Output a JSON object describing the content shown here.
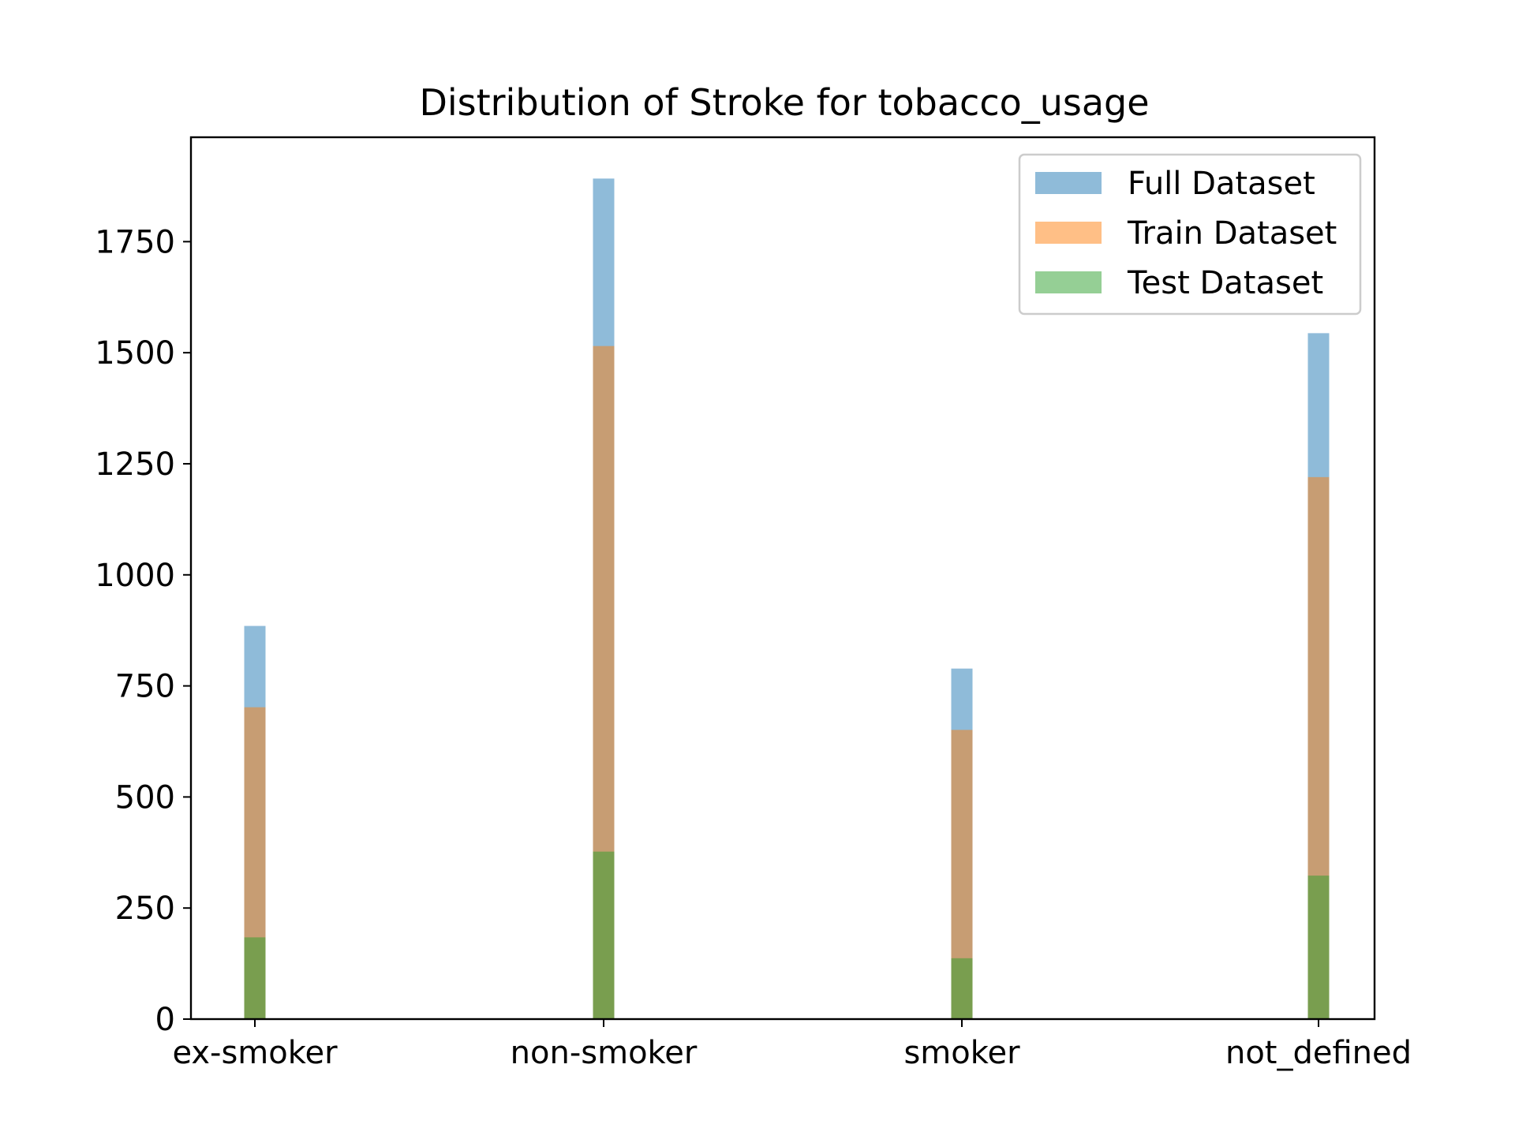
{
  "chart_data": {
    "type": "bar",
    "title": "Distribution of Stroke for tobacco_usage",
    "xlabel": "",
    "ylabel": "",
    "categories": [
      "ex-smoker",
      "non-smoker",
      "smoker",
      "not_defined"
    ],
    "y_ticks": [
      0,
      250,
      500,
      750,
      1000,
      1250,
      1500,
      1750
    ],
    "ylim": [
      0,
      1985
    ],
    "grid": false,
    "legend_position": "top-right",
    "overlay": true,
    "series": [
      {
        "name": "Full Dataset",
        "color": "#1f77b4",
        "opacity": 0.5,
        "values": [
          885,
          1892,
          789,
          1544
        ]
      },
      {
        "name": "Train Dataset",
        "color": "#ff7f0e",
        "opacity": 0.5,
        "values": [
          702,
          1515,
          651,
          1220
        ]
      },
      {
        "name": "Test Dataset",
        "color": "#2ca02c",
        "opacity": 0.5,
        "values": [
          184,
          377,
          137,
          323
        ]
      }
    ]
  }
}
